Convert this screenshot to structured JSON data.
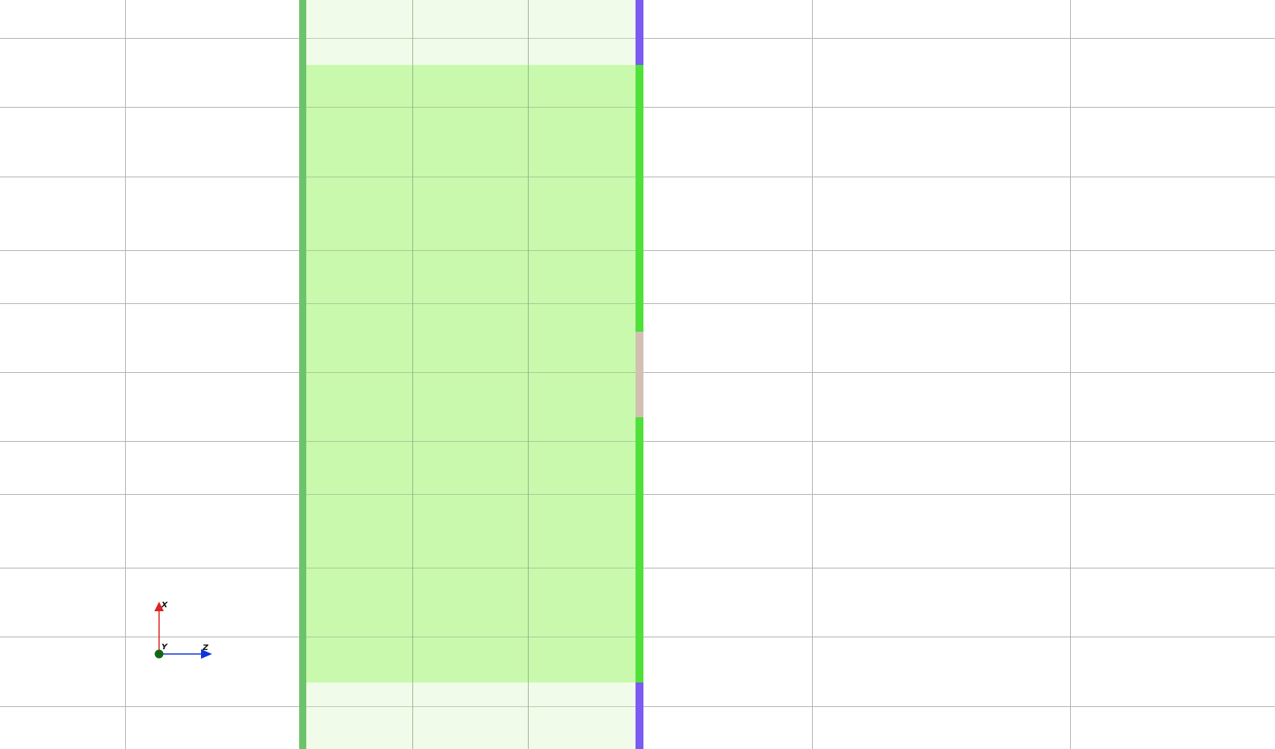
{
  "viewport": {
    "name": "3d-model-viewport",
    "view": "top",
    "background": "#ffffff"
  },
  "colors": {
    "grid_line": "#b4b4b4",
    "panel_fill_selected": "#c8f9ad",
    "panel_fill_faded": "#f1fbe9",
    "panel_internal_line": "#8ea882",
    "left_edge_strip": "#6cc36a",
    "right_edge_purple": "#7a5cf2",
    "right_edge_green": "#4fe13a",
    "right_edge_tan": "#d2c0b3",
    "axis_x": "#dd2222",
    "axis_z": "#1133dd",
    "axis_y_dot": "#116611"
  },
  "axis_triad": {
    "x_label": "X",
    "y_label": "Y",
    "z_label": "Z"
  }
}
